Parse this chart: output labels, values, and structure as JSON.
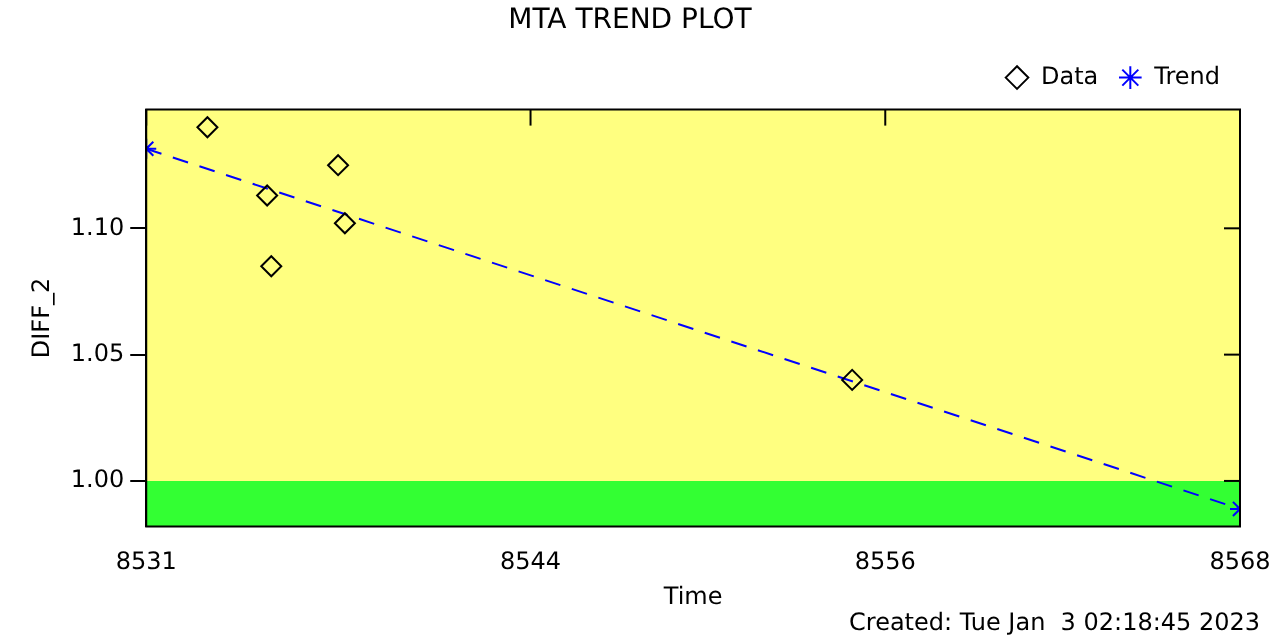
{
  "chart_data": {
    "type": "scatter",
    "title": "MTA TREND PLOT",
    "xlabel": "Time",
    "ylabel": "DIFF_2",
    "annotations": [
      "Created: Tue Jan  3 02:18:45 2023"
    ],
    "xlim": [
      8531,
      8568
    ],
    "xticks": [
      8531,
      8544,
      8556,
      8568
    ],
    "ylim": [
      0.982,
      1.147
    ],
    "yticks": [
      {
        "value": 1.0,
        "label": "1.00"
      },
      1.05,
      {
        "value": 1.1,
        "label": "1.10"
      }
    ],
    "grid": false,
    "legend": "top right",
    "bands": [
      {
        "axis": "y",
        "from": 0.982,
        "to": 1.0,
        "color": "#33ff33"
      },
      {
        "axis": "y",
        "from": 1.0,
        "to": 1.147,
        "color": "#ffff80"
      }
    ],
    "series": [
      {
        "name": "Data",
        "color": "#000000",
        "marker": "diamond",
        "x": [
          8533.07,
          8535.09,
          8535.23,
          8537.49,
          8537.72,
          8554.88
        ],
        "values": [
          1.14,
          1.113,
          1.085,
          1.125,
          1.102,
          1.04
        ]
      },
      {
        "name": "Trend",
        "type": "line",
        "color": "#0000ff",
        "marker": "cross",
        "line_style": "dashed",
        "x": [
          8531,
          8568
        ],
        "values": [
          1.1315,
          0.9889
        ]
      }
    ]
  }
}
